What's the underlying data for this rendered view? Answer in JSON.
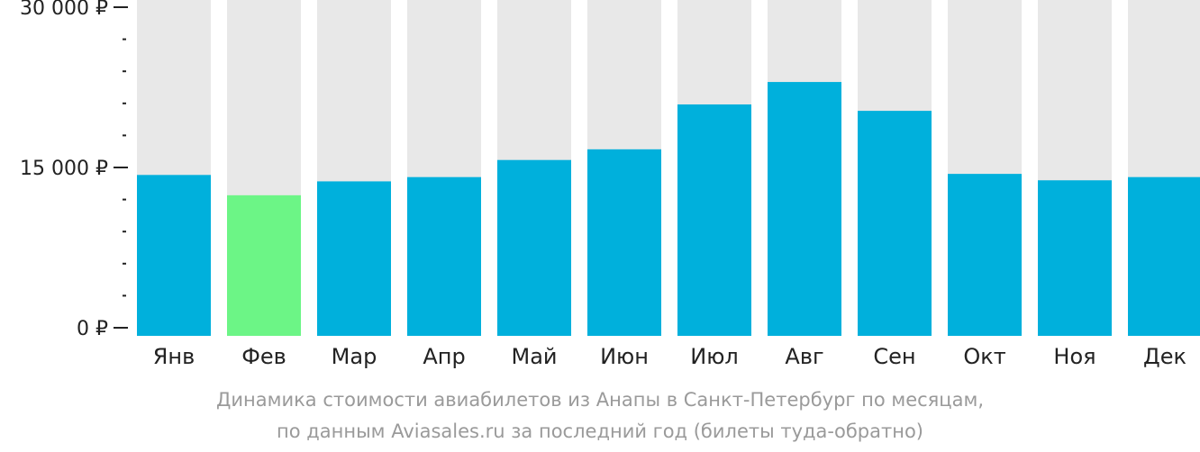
{
  "chart_data": {
    "type": "bar",
    "categories": [
      "Янв",
      "Фев",
      "Мар",
      "Апр",
      "Май",
      "Июн",
      "Июл",
      "Авг",
      "Сен",
      "Окт",
      "Ноя",
      "Дек"
    ],
    "values": [
      14300,
      12400,
      13700,
      14100,
      15700,
      16700,
      20900,
      23000,
      20300,
      14400,
      13800,
      14100
    ],
    "highlight_index": 1,
    "ylim": [
      0,
      30000
    ],
    "yticks": [
      {
        "value": 0,
        "label": "0 ₽"
      },
      {
        "value": 15000,
        "label": "15 000 ₽"
      },
      {
        "value": 30000,
        "label": "30 000 ₽"
      }
    ],
    "minor_tick_step": 3000,
    "grid": false,
    "legend": "none",
    "colors": {
      "bar": "#00b0dc",
      "highlight": "#6cf586",
      "background_bar": "#e8e8e8",
      "axis": "#222222",
      "caption": "#9a9a9a"
    }
  },
  "caption": {
    "line1": "Динамика стоимости авиабилетов из Анапы в Санкт-Петербург по месяцам,",
    "line2": "по данным Aviasales.ru за последний год (билеты туда-обратно)"
  }
}
